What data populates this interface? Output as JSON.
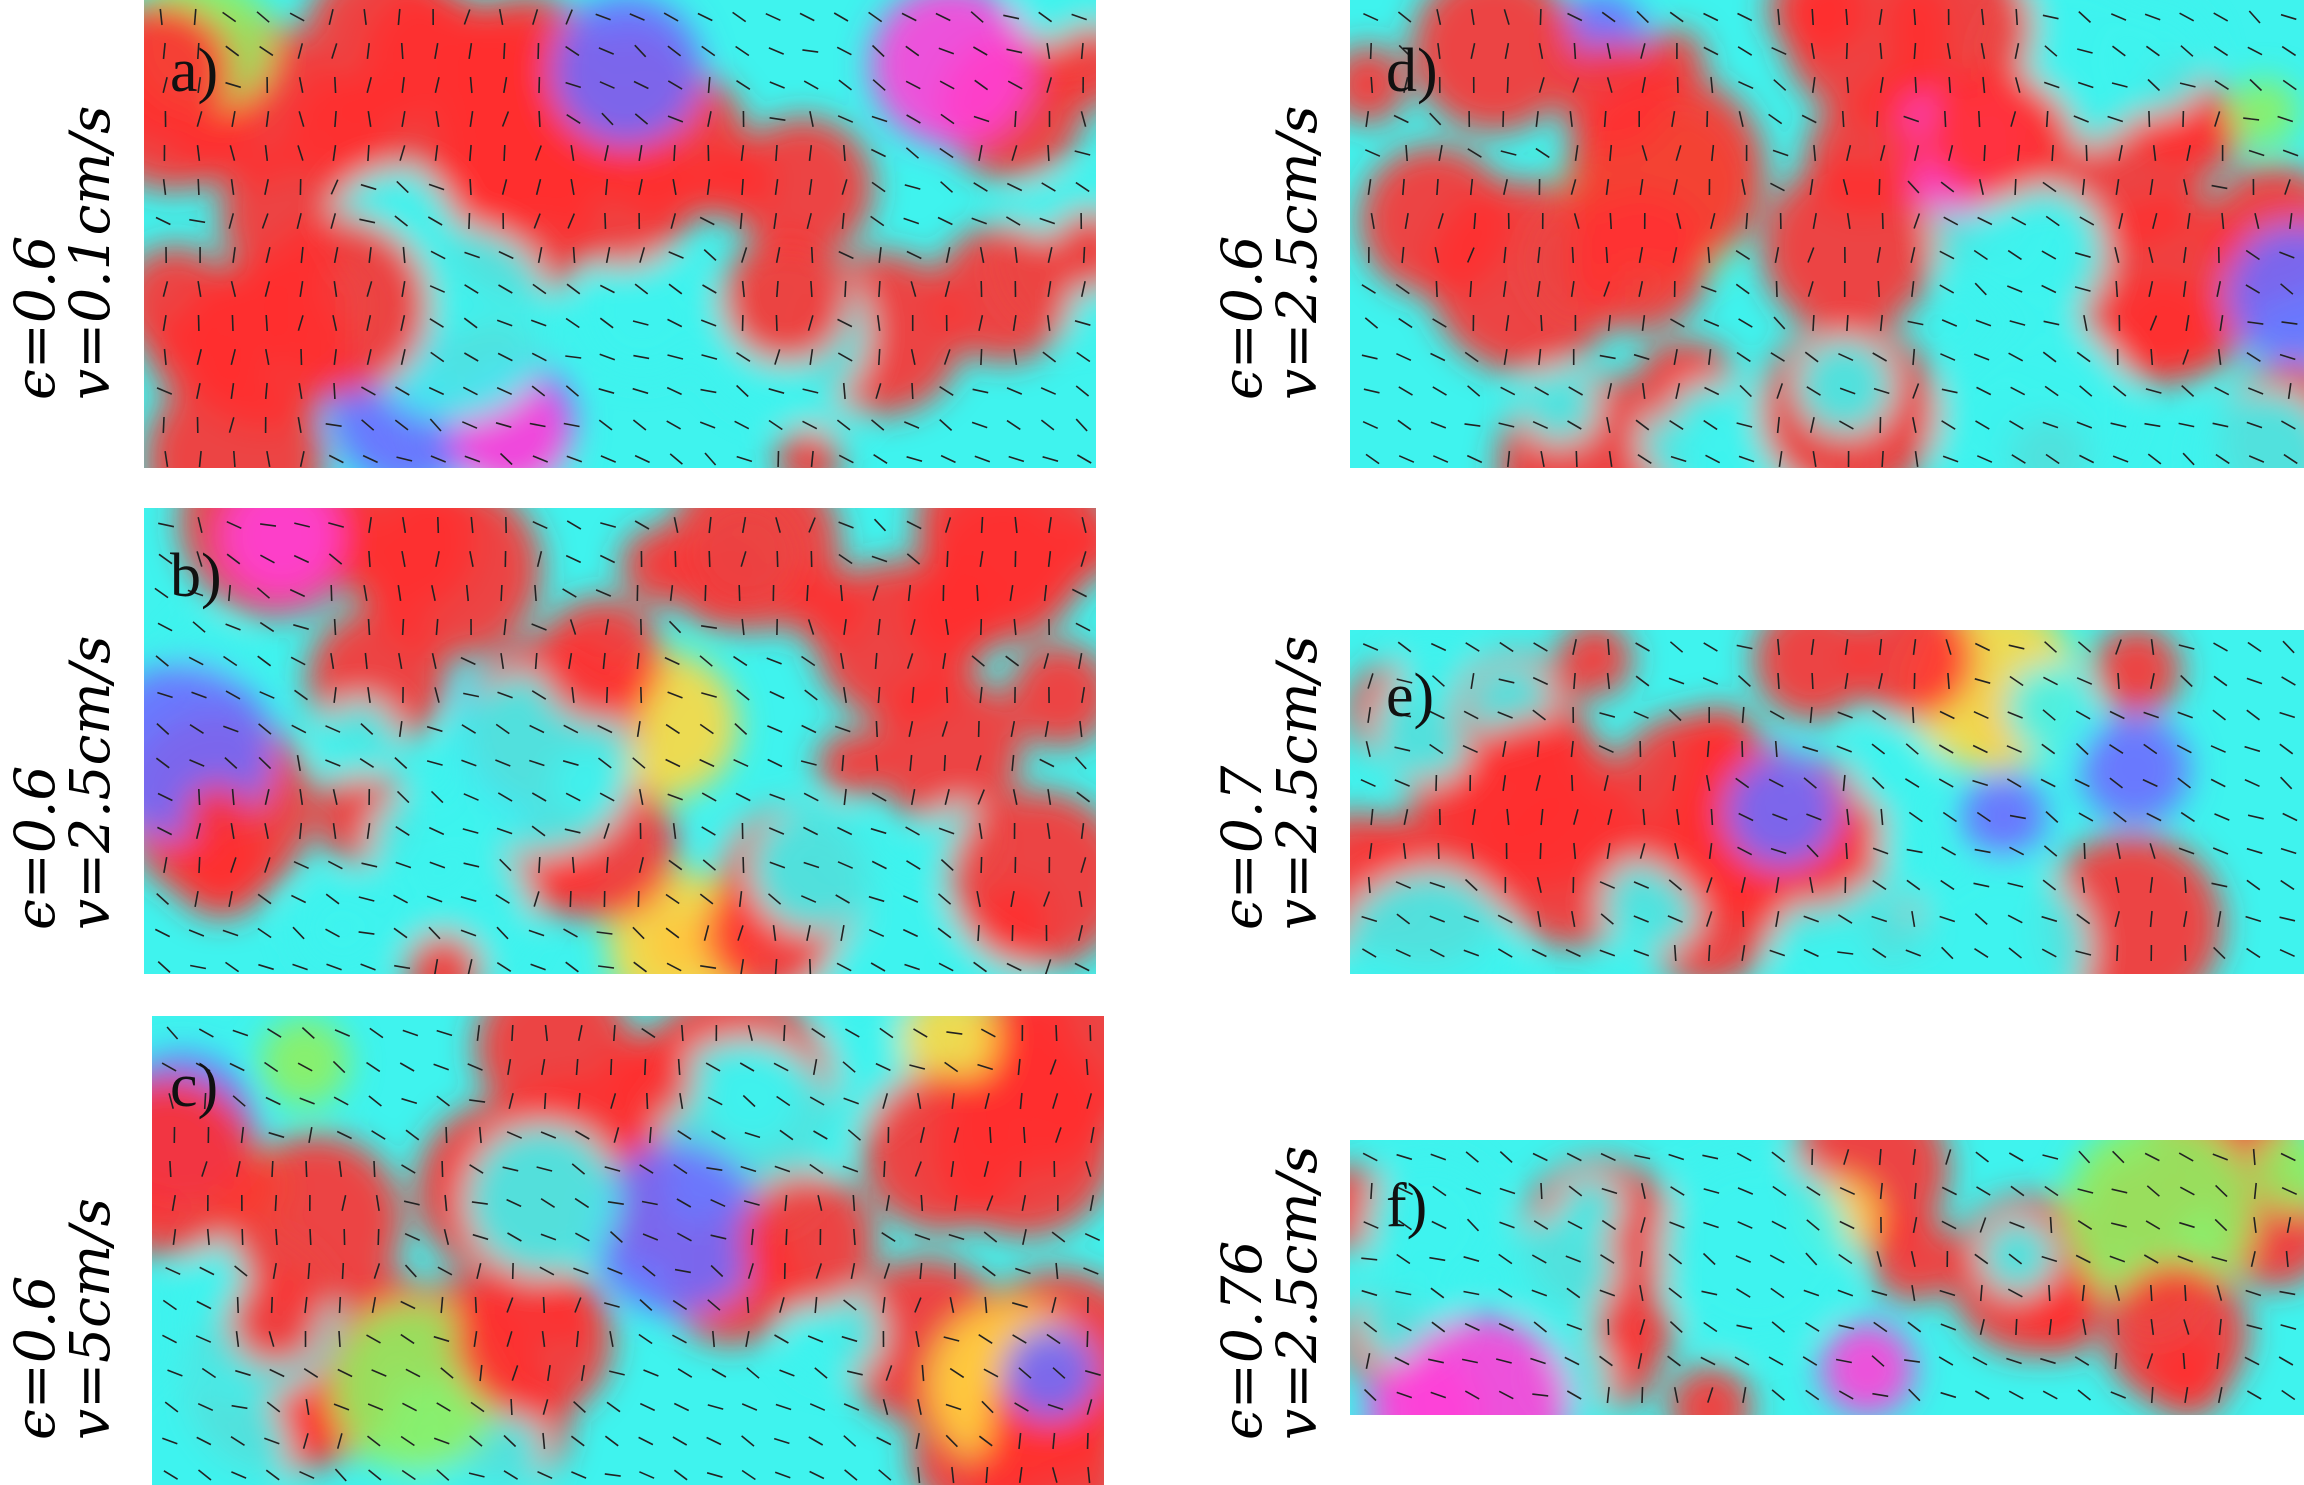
{
  "colors": {
    "red": "#ff3030",
    "cyan": "#3ff3ee",
    "yellow": "#ffd840",
    "green": "#90f060",
    "blue": "#6f6cff",
    "magenta": "#ff40d8",
    "stroke": "#222222"
  },
  "panels": [
    {
      "id": "a",
      "label": "a)",
      "epsilon": "ϵ=0.6",
      "velocity": "v=0.1cm/s"
    },
    {
      "id": "b",
      "label": "b)",
      "epsilon": "ϵ=0.6",
      "velocity": "v=2.5cm/s"
    },
    {
      "id": "c",
      "label": "c)",
      "epsilon": "ϵ=0.6",
      "velocity": "v=5cm/s"
    },
    {
      "id": "d",
      "label": "d)",
      "epsilon": "ϵ=0.6",
      "velocity": "v=2.5cm/s"
    },
    {
      "id": "e",
      "label": "e)",
      "epsilon": "ϵ=0.7",
      "velocity": "v=2.5cm/s"
    },
    {
      "id": "f",
      "label": "f)",
      "epsilon": "ϵ=0.76",
      "velocity": "v=2.5cm/s"
    }
  ]
}
